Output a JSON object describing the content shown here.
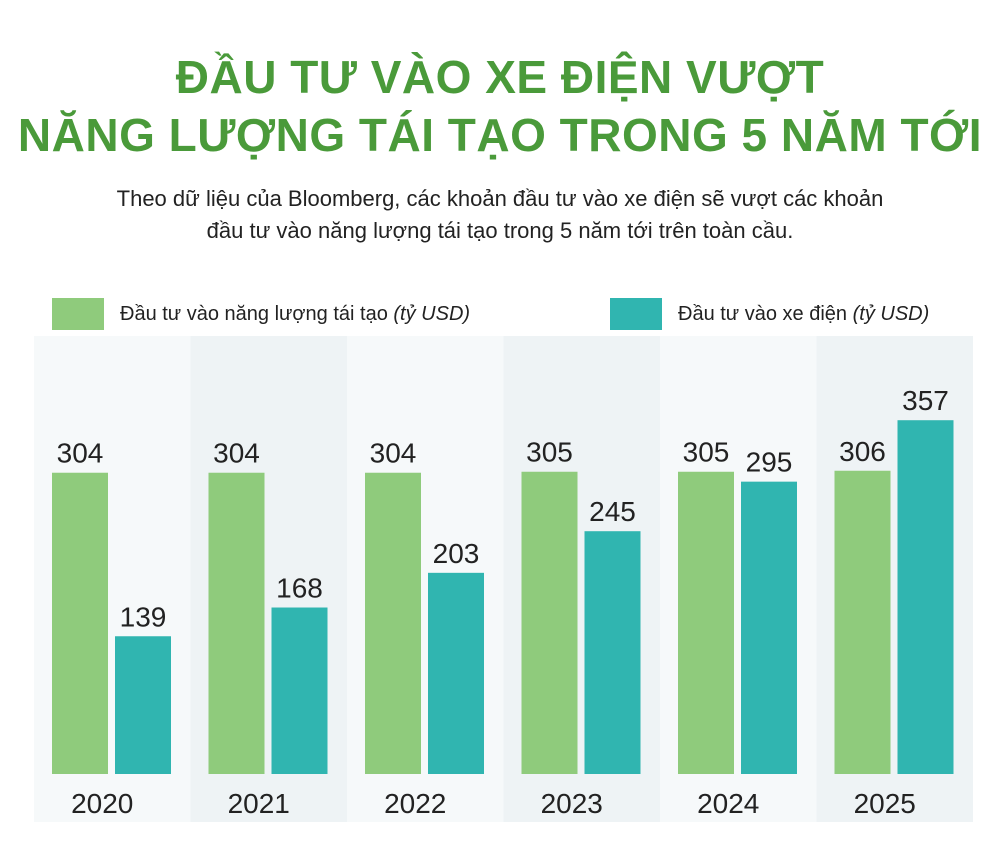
{
  "header": {
    "title_line1": "ĐẦU TƯ VÀO XE ĐIỆN VƯỢT",
    "title_line2": "NĂNG LƯỢNG TÁI TẠO TRONG 5 NĂM TỚI",
    "subtitle_line1": "Theo dữ liệu của Bloomberg, các khoản đầu tư vào xe điện sẽ vượt các khoản",
    "subtitle_line2": "đầu tư vào năng lượng tái tạo trong 5 năm tới trên toàn cầu."
  },
  "legend": {
    "renewable_label": "Đầu tư vào năng lượng tái tạo ",
    "renewable_unit": "(tỷ USD)",
    "ev_label": "Đầu tư vào xe điện ",
    "ev_unit": "(tỷ USD)"
  },
  "colors": {
    "title": "#4a9a3a",
    "renewable": "#8fcb7c",
    "ev": "#30b5b0",
    "band": "#eef3f5",
    "band_light": "#f6f9fa"
  },
  "chart_data": {
    "type": "bar",
    "categories": [
      "2020",
      "2021",
      "2022",
      "2023",
      "2024",
      "2025"
    ],
    "series": [
      {
        "name": "Đầu tư vào năng lượng tái tạo (tỷ USD)",
        "values": [
          304,
          304,
          304,
          305,
          305,
          306
        ]
      },
      {
        "name": "Đầu tư vào xe điện (tỷ USD)",
        "values": [
          139,
          168,
          203,
          245,
          295,
          357
        ]
      }
    ],
    "ylim": [
      0,
      357
    ]
  }
}
